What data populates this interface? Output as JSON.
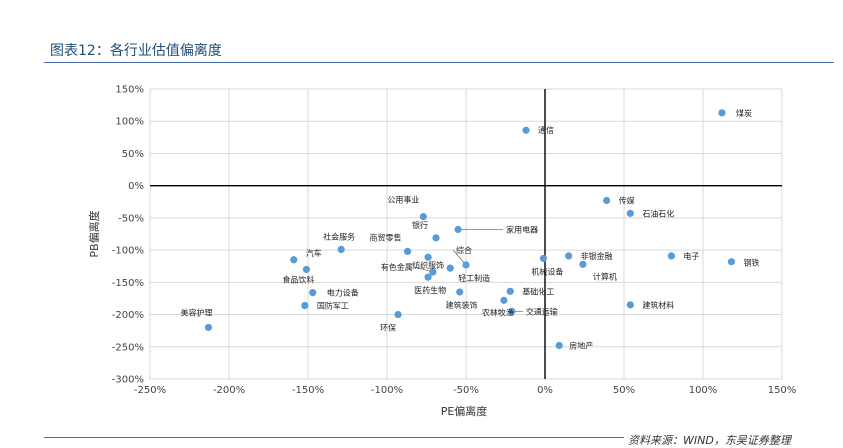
{
  "figure": {
    "title": "图表12：各行业估值偏离度",
    "source": "资料来源：WIND，东吴证券整理"
  },
  "colors": {
    "marker": "#5b9bd5",
    "grid": "#d9d9d9",
    "axis": "#000000"
  },
  "chart_data": {
    "type": "scatter",
    "xlabel": "PE偏离度",
    "ylabel": "PB偏离度",
    "xlim": [
      -250,
      150
    ],
    "ylim": [
      -300,
      150
    ],
    "x_ticks": [
      "-250%",
      "-200%",
      "-150%",
      "-100%",
      "-50%",
      "0%",
      "50%",
      "100%",
      "150%"
    ],
    "y_ticks": [
      "150%",
      "100%",
      "50%",
      "0%",
      "-50%",
      "-100%",
      "-150%",
      "-200%",
      "-250%",
      "-300%"
    ],
    "grid": true,
    "points": [
      {
        "label": "煤炭",
        "x": 112,
        "y": 113
      },
      {
        "label": "通信",
        "x": -12,
        "y": 86
      },
      {
        "label": "传媒",
        "x": 39,
        "y": -23
      },
      {
        "label": "石油石化",
        "x": 54,
        "y": -43
      },
      {
        "label": "公用事业",
        "x": -77,
        "y": -48
      },
      {
        "label": "家用电器",
        "x": -55,
        "y": -68
      },
      {
        "label": "银行",
        "x": -69,
        "y": -81
      },
      {
        "label": "商贸零售",
        "x": -87,
        "y": -102
      },
      {
        "label": "社会服务",
        "x": -129,
        "y": -99
      },
      {
        "label": "纺织服饰",
        "x": -74,
        "y": -111
      },
      {
        "label": "综合",
        "x": -50,
        "y": -123
      },
      {
        "label": "非银金融",
        "x": 15,
        "y": -109
      },
      {
        "label": "电子",
        "x": 80,
        "y": -109
      },
      {
        "label": "钢铁",
        "x": 118,
        "y": -118
      },
      {
        "label": "计算机",
        "x": 24,
        "y": -122
      },
      {
        "label": "机械设备",
        "x": -1,
        "y": -113
      },
      {
        "label": "汽车",
        "x": -159,
        "y": -115
      },
      {
        "label": "食品饮料",
        "x": -151,
        "y": -130
      },
      {
        "label": "有色金属",
        "x": -71,
        "y": -134
      },
      {
        "label": "轻工制造",
        "x": -60,
        "y": -128
      },
      {
        "label": "医药生物",
        "x": -74,
        "y": -142
      },
      {
        "label": "电力设备",
        "x": -147,
        "y": -166
      },
      {
        "label": "建筑装饰",
        "x": -54,
        "y": -165
      },
      {
        "label": "基础化工",
        "x": -22,
        "y": -164
      },
      {
        "label": "国防军工",
        "x": -152,
        "y": -186
      },
      {
        "label": "农林牧渔",
        "x": -26,
        "y": -178
      },
      {
        "label": "交通运输",
        "x": -21,
        "y": -195
      },
      {
        "label": "建筑材料",
        "x": 54,
        "y": -185
      },
      {
        "label": "美容护理",
        "x": -213,
        "y": -220
      },
      {
        "label": "环保",
        "x": -93,
        "y": -200
      },
      {
        "label": "房地产",
        "x": 9,
        "y": -248
      }
    ]
  }
}
